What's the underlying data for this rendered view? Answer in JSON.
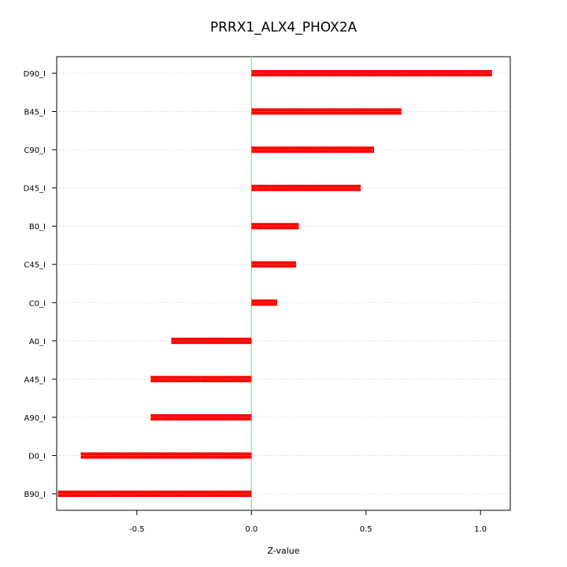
{
  "chart_data": {
    "type": "bar",
    "orientation": "horizontal",
    "title": "PRRX1_ALX4_PHOX2A",
    "xlabel": "Z-value",
    "ylabel": "",
    "xlim": [
      -0.85,
      1.13
    ],
    "xticks": [
      -0.5,
      0.0,
      0.5,
      1.0
    ],
    "xtick_labels": [
      "-0.5",
      "0.0",
      "0.5",
      "1.0"
    ],
    "grid": "horizontal dotted",
    "zero_line_color": "#90ee90",
    "bar_color": "#ff0000",
    "categories": [
      "D90_I",
      "B45_I",
      "C90_I",
      "D45_I",
      "B0_I",
      "C45_I",
      "C0_I",
      "A0_I",
      "A45_I",
      "A90_I",
      "D0_I",
      "B90_I"
    ],
    "values": [
      1.05,
      0.655,
      0.535,
      0.477,
      0.207,
      0.195,
      0.112,
      -0.35,
      -0.44,
      -0.44,
      -0.745,
      -0.845
    ]
  }
}
